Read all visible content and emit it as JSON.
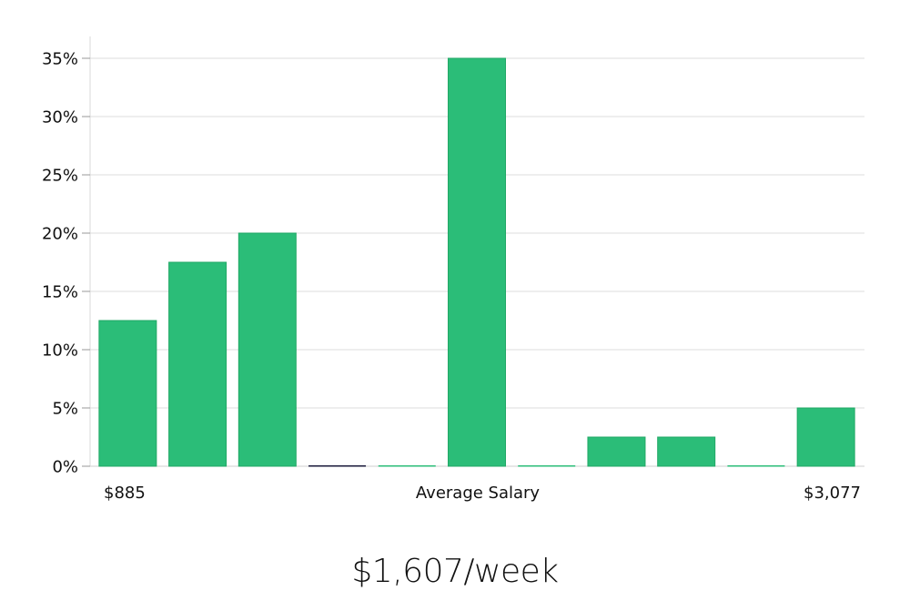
{
  "chart_data": {
    "type": "bar",
    "values": [
      12.5,
      17.5,
      20,
      0,
      0,
      35,
      0,
      2.5,
      2.5,
      0,
      5
    ],
    "ylim": [
      0,
      35
    ],
    "yticks": [
      "0%",
      "5%",
      "10%",
      "15%",
      "20%",
      "25%",
      "30%",
      "35%"
    ],
    "ytick_values": [
      0,
      5,
      10,
      15,
      20,
      25,
      30,
      35
    ],
    "x_labels": {
      "left": "$885",
      "center": "Average Salary",
      "right": "$3,077"
    },
    "grid": true,
    "bar_color": "#2bbd78",
    "zero_bar_color": "#1a1a3a"
  },
  "salary_figure": "$1,607/week"
}
